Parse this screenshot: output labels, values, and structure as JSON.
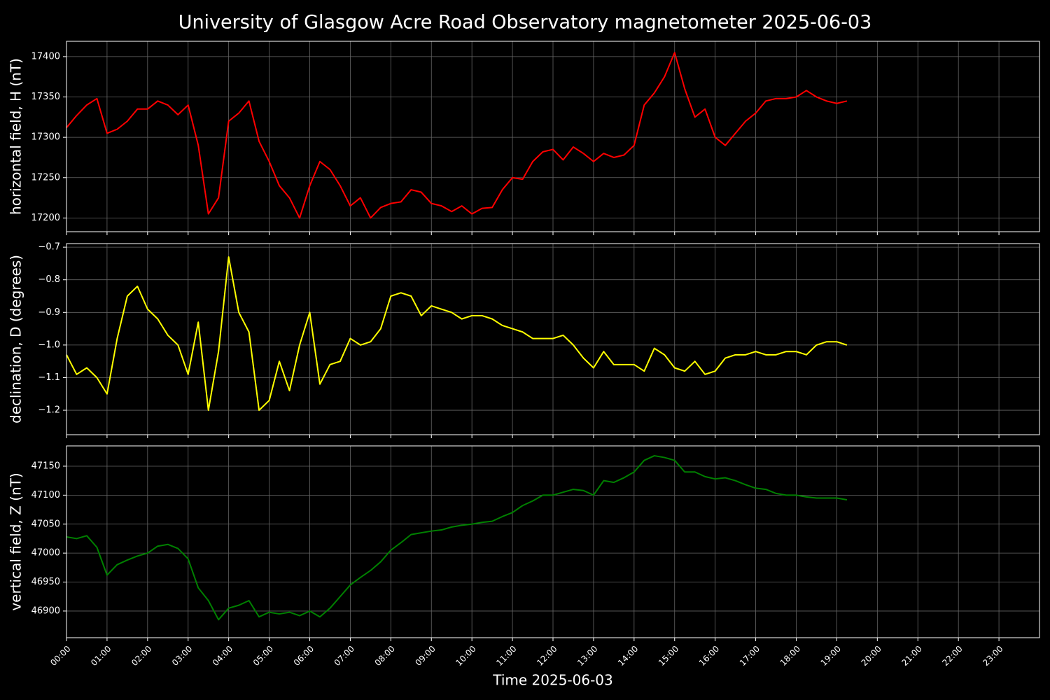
{
  "title": "University of Glasgow Acre Road Observatory magnetometer 2025-06-03",
  "chart_data": [
    {
      "type": "line",
      "ylabel": "horizontal field, H (nT)",
      "color": "#ff0000",
      "x": [
        0,
        0.25,
        0.5,
        0.75,
        1,
        1.25,
        1.5,
        1.75,
        2,
        2.25,
        2.5,
        2.75,
        3,
        3.25,
        3.5,
        3.75,
        4,
        4.25,
        4.5,
        4.75,
        5,
        5.25,
        5.5,
        5.75,
        6,
        6.25,
        6.5,
        6.75,
        7,
        7.25,
        7.5,
        7.75,
        8,
        8.25,
        8.5,
        8.75,
        9,
        9.25,
        9.5,
        9.75,
        10,
        10.25,
        10.5,
        10.75,
        11,
        11.25,
        11.5,
        11.75,
        12,
        12.25,
        12.5,
        12.75,
        13,
        13.25,
        13.5,
        13.75,
        14,
        14.25,
        14.5,
        14.75,
        15,
        15.25,
        15.5,
        15.75,
        16,
        16.25,
        16.5,
        16.75,
        17,
        17.25,
        17.5,
        17.75,
        18,
        18.25,
        18.5,
        18.75,
        19,
        19.25
      ],
      "values": [
        17312,
        17327,
        17340,
        17348,
        17305,
        17310,
        17320,
        17335,
        17335,
        17345,
        17340,
        17328,
        17340,
        17290,
        17205,
        17225,
        17320,
        17330,
        17345,
        17295,
        17270,
        17240,
        17225,
        17200,
        17240,
        17270,
        17260,
        17240,
        17215,
        17225,
        17200,
        17213,
        17218,
        17220,
        17235,
        17232,
        17218,
        17215,
        17208,
        17215,
        17205,
        17212,
        17213,
        17235,
        17250,
        17248,
        17270,
        17282,
        17285,
        17272,
        17288,
        17280,
        17270,
        17280,
        17275,
        17278,
        17290,
        17340,
        17355,
        17375,
        17405,
        17360,
        17325,
        17335,
        17300,
        17290,
        17305,
        17320,
        17330,
        17345,
        17348,
        17348,
        17350,
        17358,
        17350,
        17345,
        17342,
        17345
      ],
      "xlim": [
        0,
        24
      ],
      "xticks": [
        0,
        1,
        2,
        3,
        4,
        5,
        6,
        7,
        8,
        9,
        10,
        11,
        12,
        13,
        14,
        15,
        16,
        17,
        18,
        19,
        20,
        21,
        22,
        23
      ],
      "ylim": [
        17183,
        17419
      ],
      "yticks": [
        17200,
        17250,
        17300,
        17350,
        17400
      ],
      "grid": true
    },
    {
      "type": "line",
      "ylabel": "declination, D (degrees)",
      "color": "#ffff00",
      "x": [
        0,
        0.25,
        0.5,
        0.75,
        1,
        1.25,
        1.5,
        1.75,
        2,
        2.25,
        2.5,
        2.75,
        3,
        3.25,
        3.5,
        3.75,
        4,
        4.25,
        4.5,
        4.75,
        5,
        5.25,
        5.5,
        5.75,
        6,
        6.25,
        6.5,
        6.75,
        7,
        7.25,
        7.5,
        7.75,
        8,
        8.25,
        8.5,
        8.75,
        9,
        9.25,
        9.5,
        9.75,
        10,
        10.25,
        10.5,
        10.75,
        11,
        11.25,
        11.5,
        11.75,
        12,
        12.25,
        12.5,
        12.75,
        13,
        13.25,
        13.5,
        13.75,
        14,
        14.25,
        14.5,
        14.75,
        15,
        15.25,
        15.5,
        15.75,
        16,
        16.25,
        16.5,
        16.75,
        17,
        17.25,
        17.5,
        17.75,
        18,
        18.25,
        18.5,
        18.75,
        19,
        19.25
      ],
      "values": [
        -1.03,
        -1.09,
        -1.07,
        -1.1,
        -1.15,
        -0.98,
        -0.85,
        -0.82,
        -0.89,
        -0.92,
        -0.97,
        -1.0,
        -1.09,
        -0.93,
        -1.2,
        -1.02,
        -0.73,
        -0.9,
        -0.96,
        -1.2,
        -1.17,
        -1.05,
        -1.14,
        -1.0,
        -0.9,
        -1.12,
        -1.06,
        -1.05,
        -0.98,
        -1.0,
        -0.99,
        -0.95,
        -0.85,
        -0.84,
        -0.85,
        -0.91,
        -0.88,
        -0.89,
        -0.9,
        -0.92,
        -0.91,
        -0.91,
        -0.92,
        -0.94,
        -0.95,
        -0.96,
        -0.98,
        -0.98,
        -0.98,
        -0.97,
        -1.0,
        -1.04,
        -1.07,
        -1.02,
        -1.06,
        -1.06,
        -1.06,
        -1.08,
        -1.01,
        -1.03,
        -1.07,
        -1.08,
        -1.05,
        -1.09,
        -1.08,
        -1.04,
        -1.03,
        -1.03,
        -1.02,
        -1.03,
        -1.03,
        -1.02,
        -1.02,
        -1.03,
        -1.0,
        -0.99,
        -0.99,
        -1.0
      ],
      "xlim": [
        0,
        24
      ],
      "xticks": [
        0,
        1,
        2,
        3,
        4,
        5,
        6,
        7,
        8,
        9,
        10,
        11,
        12,
        13,
        14,
        15,
        16,
        17,
        18,
        19,
        20,
        21,
        22,
        23
      ],
      "ylim": [
        -1.275,
        -0.689
      ],
      "yticks": [
        {
          "value": -1.2,
          "label": "−1.2"
        },
        {
          "value": -1.1,
          "label": "−1.1"
        },
        {
          "value": -1.0,
          "label": "−1.0"
        },
        {
          "value": -0.9,
          "label": "−0.9"
        },
        {
          "value": -0.8,
          "label": "−0.8"
        },
        {
          "value": -0.7,
          "label": "−0.7"
        }
      ],
      "grid": true
    },
    {
      "type": "line",
      "ylabel": "vertical field, Z (nT)",
      "xlabel": "Time 2025-06-03",
      "color": "#008000",
      "x": [
        0,
        0.25,
        0.5,
        0.75,
        1,
        1.25,
        1.5,
        1.75,
        2,
        2.25,
        2.5,
        2.75,
        3,
        3.25,
        3.5,
        3.75,
        4,
        4.25,
        4.5,
        4.75,
        5,
        5.25,
        5.5,
        5.75,
        6,
        6.25,
        6.5,
        6.75,
        7,
        7.25,
        7.5,
        7.75,
        8,
        8.25,
        8.5,
        8.75,
        9,
        9.25,
        9.5,
        9.75,
        10,
        10.25,
        10.5,
        10.75,
        11,
        11.25,
        11.5,
        11.75,
        12,
        12.25,
        12.5,
        12.75,
        13,
        13.25,
        13.5,
        13.75,
        14,
        14.25,
        14.5,
        14.75,
        15,
        15.25,
        15.5,
        15.75,
        16,
        16.25,
        16.5,
        16.75,
        17,
        17.25,
        17.5,
        17.75,
        18,
        18.25,
        18.5,
        18.75,
        19,
        19.25
      ],
      "values": [
        47028,
        47025,
        47030,
        47010,
        46962,
        46980,
        46988,
        46995,
        47000,
        47012,
        47015,
        47008,
        46990,
        46940,
        46918,
        46885,
        46905,
        46910,
        46918,
        46890,
        46898,
        46895,
        46898,
        46892,
        46900,
        46890,
        46905,
        46925,
        46945,
        46958,
        46970,
        46985,
        47005,
        47018,
        47032,
        47035,
        47038,
        47040,
        47045,
        47048,
        47050,
        47053,
        47055,
        47063,
        47070,
        47082,
        47090,
        47100,
        47100,
        47105,
        47110,
        47108,
        47100,
        47125,
        47122,
        47130,
        47140,
        47160,
        47168,
        47165,
        47160,
        47140,
        47140,
        47132,
        47128,
        47130,
        47125,
        47118,
        47112,
        47110,
        47103,
        47100,
        47100,
        47097,
        47095,
        47095,
        47095,
        47092
      ],
      "xlim": [
        0,
        24
      ],
      "xticks": [
        {
          "value": 0,
          "label": "00:00"
        },
        {
          "value": 1,
          "label": "01:00"
        },
        {
          "value": 2,
          "label": "02:00"
        },
        {
          "value": 3,
          "label": "03:00"
        },
        {
          "value": 4,
          "label": "04:00"
        },
        {
          "value": 5,
          "label": "05:00"
        },
        {
          "value": 6,
          "label": "06:00"
        },
        {
          "value": 7,
          "label": "07:00"
        },
        {
          "value": 8,
          "label": "08:00"
        },
        {
          "value": 9,
          "label": "09:00"
        },
        {
          "value": 10,
          "label": "10:00"
        },
        {
          "value": 11,
          "label": "11:00"
        },
        {
          "value": 12,
          "label": "12:00"
        },
        {
          "value": 13,
          "label": "13:00"
        },
        {
          "value": 14,
          "label": "14:00"
        },
        {
          "value": 15,
          "label": "15:00"
        },
        {
          "value": 16,
          "label": "16:00"
        },
        {
          "value": 17,
          "label": "17:00"
        },
        {
          "value": 18,
          "label": "18:00"
        },
        {
          "value": 19,
          "label": "19:00"
        },
        {
          "value": 20,
          "label": "20:00"
        },
        {
          "value": 21,
          "label": "21:00"
        },
        {
          "value": 22,
          "label": "22:00"
        },
        {
          "value": 23,
          "label": "23:00"
        }
      ],
      "ylim": [
        46854,
        47185
      ],
      "yticks": [
        46900,
        46950,
        47000,
        47050,
        47100,
        47150
      ],
      "grid": true
    }
  ]
}
